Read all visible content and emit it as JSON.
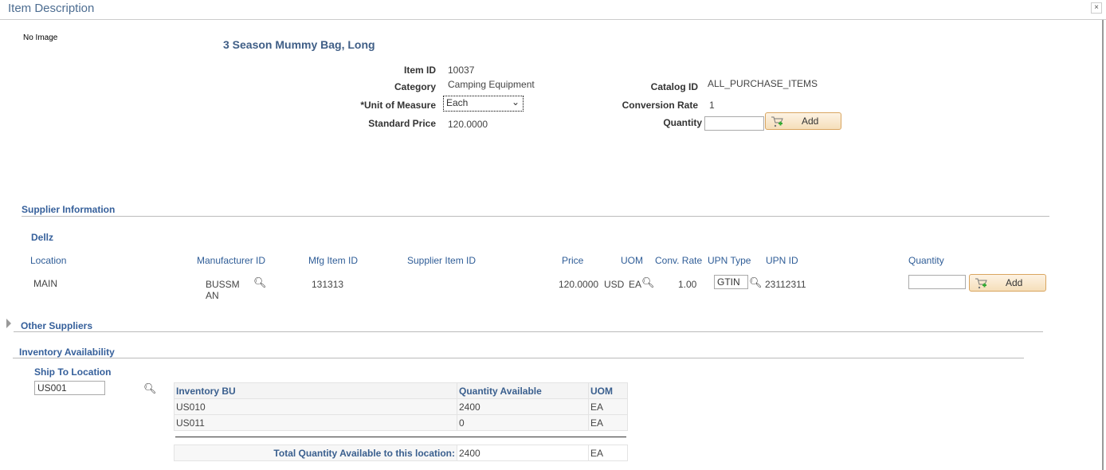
{
  "window": {
    "title": "Item Description",
    "close_label": "×"
  },
  "image": {
    "placeholder": "No Image"
  },
  "item": {
    "name": "3 Season Mummy Bag, Long",
    "item_id_label": "Item ID",
    "item_id": "10037",
    "category_label": "Category",
    "category": "Camping Equipment",
    "uom_label": "*Unit of Measure",
    "uom": "Each",
    "price_label": "Standard Price",
    "price": "120.0000",
    "catalog_label": "Catalog ID",
    "catalog": "ALL_PURCHASE_ITEMS",
    "conv_label": "Conversion Rate",
    "conv": "1",
    "qty_label": "Quantity",
    "qty": "",
    "add_label": "Add"
  },
  "supplier": {
    "section": "Supplier Information",
    "name": "Dellz",
    "columns": [
      "Location",
      "Manufacturer ID",
      "Mfg Item ID",
      "Supplier Item ID",
      "Price",
      "UOM",
      "Conv. Rate",
      "UPN Type",
      "UPN ID",
      "Quantity"
    ],
    "row": {
      "location": "MAIN",
      "manufacturer_id_1": "BUSSM",
      "manufacturer_id_2": "AN",
      "mfg_item_id": "131313",
      "supplier_item_id": "",
      "price": "120.0000",
      "currency": "USD",
      "uom": "EA",
      "conv_rate": "1.00",
      "upn_type": "GTIN",
      "upn_id": "23112311",
      "qty": ""
    },
    "add_label": "Add"
  },
  "other_suppliers": {
    "section": "Other Suppliers"
  },
  "inventory": {
    "section": "Inventory Availability",
    "ship_to_label": "Ship To Location",
    "ship_to": "US001",
    "columns": [
      "Inventory BU",
      "Quantity Available",
      "UOM"
    ],
    "rows": [
      {
        "bu": "US010",
        "qty": "2400",
        "uom": "EA"
      },
      {
        "bu": "US011",
        "qty": "0",
        "uom": "EA"
      }
    ],
    "total_label": "Total Quantity Available to this location:",
    "total_qty": "2400",
    "total_uom": "EA"
  }
}
